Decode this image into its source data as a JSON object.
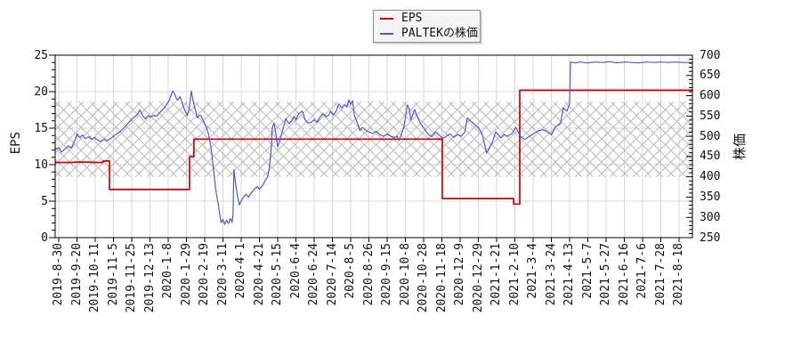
{
  "legend": {
    "items": [
      {
        "label": "EPS",
        "color": "#d40000"
      },
      {
        "label": "PALTEKの株価",
        "color": "#5055d2"
      }
    ]
  },
  "chart_data": {
    "type": "line",
    "title": "",
    "x_axis": {
      "tick_labels": [
        "2019-8-30",
        "2019-9-20",
        "2019-10-11",
        "2019-11-5",
        "2019-11-25",
        "2019-12-13",
        "2020-1-8",
        "2020-1-29",
        "2020-2-19",
        "2020-3-11",
        "2020-4-1",
        "2020-4-21",
        "2020-5-15",
        "2020-6-4",
        "2020-6-24",
        "2020-7-14",
        "2020-8-5",
        "2020-8-26",
        "2020-9-15",
        "2020-10-8",
        "2020-10-28",
        "2020-11-18",
        "2020-12-9",
        "2020-12-29",
        "2021-1-21",
        "2021-2-10",
        "2021-3-4",
        "2021-3-24",
        "2021-4-13",
        "2021-5-7",
        "2021-5-27",
        "2021-6-16",
        "2021-7-6",
        "2021-7-28",
        "2021-8-18"
      ]
    },
    "left_axis": {
      "label": "EPS",
      "min": 0,
      "max": 25,
      "ticks": [
        0,
        5,
        10,
        15,
        20,
        25
      ],
      "minor_step": 1
    },
    "right_axis": {
      "label": "株価",
      "min": 250,
      "max": 700,
      "ticks": [
        250,
        300,
        350,
        400,
        450,
        500,
        550,
        600,
        650,
        700
      ],
      "minor_step": 10
    },
    "band": {
      "style": "crosshatch",
      "color": "#b9b9b9",
      "right_axis_range": [
        400,
        585
      ]
    },
    "grid": {
      "color": "#d8d8d8",
      "vertical": "every-x-tick",
      "horizontal": "interior-left-ticks"
    },
    "series": [
      {
        "name": "EPS",
        "axis": "left",
        "color": "#d40000",
        "width": 1.7,
        "style": "step",
        "points": [
          [
            -0.2,
            10.3
          ],
          [
            0.8,
            10.3
          ],
          [
            0.9,
            10.35
          ],
          [
            1.7,
            10.35
          ],
          [
            1.8,
            10.3
          ],
          [
            2.4,
            10.3
          ],
          [
            2.45,
            10.5
          ],
          [
            2.78,
            10.5
          ],
          [
            2.78,
            6.6
          ],
          [
            7.17,
            6.6
          ],
          [
            7.17,
            11.1
          ],
          [
            7.41,
            11.1
          ],
          [
            7.41,
            13.5
          ],
          [
            21.02,
            13.5
          ],
          [
            21.02,
            5.35
          ],
          [
            24.93,
            5.35
          ],
          [
            24.93,
            4.6
          ],
          [
            25.27,
            4.6
          ],
          [
            25.27,
            20.2
          ],
          [
            34.73,
            20.2
          ]
        ]
      },
      {
        "name": "PALTEKの株価",
        "axis": "right",
        "color": "#5055d2",
        "width": 1.2,
        "style": "line",
        "points": [
          [
            -0.2,
            468
          ],
          [
            0,
            472
          ],
          [
            0.15,
            461
          ],
          [
            0.35,
            469
          ],
          [
            0.55,
            476
          ],
          [
            0.7,
            471
          ],
          [
            0.9,
            492
          ],
          [
            1.0,
            506
          ],
          [
            1.15,
            497
          ],
          [
            1.3,
            503
          ],
          [
            1.45,
            494
          ],
          [
            1.65,
            499
          ],
          [
            1.8,
            492
          ],
          [
            1.95,
            497
          ],
          [
            2.15,
            490
          ],
          [
            2.3,
            487
          ],
          [
            2.5,
            493
          ],
          [
            2.65,
            489
          ],
          [
            2.85,
            495
          ],
          [
            3.0,
            500
          ],
          [
            3.15,
            505
          ],
          [
            3.3,
            509
          ],
          [
            3.5,
            517
          ],
          [
            3.7,
            527
          ],
          [
            3.9,
            537
          ],
          [
            4.1,
            546
          ],
          [
            4.3,
            553
          ],
          [
            4.45,
            565
          ],
          [
            4.6,
            551
          ],
          [
            4.75,
            543
          ],
          [
            4.9,
            551
          ],
          [
            5.05,
            547
          ],
          [
            5.2,
            552
          ],
          [
            5.35,
            549
          ],
          [
            5.55,
            559
          ],
          [
            5.75,
            568
          ],
          [
            5.9,
            577
          ],
          [
            6.05,
            588
          ],
          [
            6.15,
            600
          ],
          [
            6.25,
            612
          ],
          [
            6.35,
            604
          ],
          [
            6.5,
            589
          ],
          [
            6.65,
            598
          ],
          [
            6.8,
            577
          ],
          [
            6.95,
            560
          ],
          [
            7.05,
            551
          ],
          [
            7.15,
            568
          ],
          [
            7.27,
            612
          ],
          [
            7.35,
            590
          ],
          [
            7.45,
            572
          ],
          [
            7.6,
            545
          ],
          [
            7.7,
            552
          ],
          [
            7.8,
            551
          ],
          [
            7.95,
            535
          ],
          [
            8.1,
            522
          ],
          [
            8.2,
            507
          ],
          [
            8.35,
            470
          ],
          [
            8.5,
            412
          ],
          [
            8.6,
            370
          ],
          [
            8.75,
            330
          ],
          [
            8.85,
            300
          ],
          [
            8.9,
            287
          ],
          [
            9.0,
            295
          ],
          [
            9.1,
            283
          ],
          [
            9.2,
            293
          ],
          [
            9.3,
            285
          ],
          [
            9.4,
            297
          ],
          [
            9.5,
            288
          ],
          [
            9.55,
            305
          ],
          [
            9.6,
            418
          ],
          [
            9.7,
            380
          ],
          [
            9.8,
            352
          ],
          [
            9.9,
            331
          ],
          [
            10.05,
            345
          ],
          [
            10.25,
            357
          ],
          [
            10.4,
            350
          ],
          [
            10.6,
            363
          ],
          [
            10.75,
            371
          ],
          [
            10.9,
            376
          ],
          [
            11.0,
            369
          ],
          [
            11.2,
            380
          ],
          [
            11.3,
            390
          ],
          [
            11.45,
            400
          ],
          [
            11.55,
            425
          ],
          [
            11.65,
            470
          ],
          [
            11.7,
            520
          ],
          [
            11.8,
            533
          ],
          [
            11.9,
            505
          ],
          [
            12.0,
            474
          ],
          [
            12.15,
            495
          ],
          [
            12.3,
            519
          ],
          [
            12.45,
            544
          ],
          [
            12.6,
            531
          ],
          [
            12.75,
            537
          ],
          [
            12.9,
            549
          ],
          [
            13.0,
            540
          ],
          [
            13.15,
            556
          ],
          [
            13.35,
            562
          ],
          [
            13.5,
            541
          ],
          [
            13.65,
            533
          ],
          [
            13.85,
            535
          ],
          [
            14.0,
            541
          ],
          [
            14.15,
            534
          ],
          [
            14.35,
            549
          ],
          [
            14.5,
            556
          ],
          [
            14.65,
            548
          ],
          [
            14.8,
            552
          ],
          [
            14.9,
            561
          ],
          [
            15.05,
            552
          ],
          [
            15.2,
            562
          ],
          [
            15.35,
            580
          ],
          [
            15.5,
            570
          ],
          [
            15.65,
            578
          ],
          [
            15.8,
            572
          ],
          [
            15.9,
            590
          ],
          [
            16.0,
            578
          ],
          [
            16.1,
            588
          ],
          [
            16.2,
            552
          ],
          [
            16.3,
            540
          ],
          [
            16.4,
            529
          ],
          [
            16.5,
            514
          ],
          [
            16.65,
            522
          ],
          [
            16.85,
            514
          ],
          [
            17.05,
            510
          ],
          [
            17.2,
            507
          ],
          [
            17.4,
            512
          ],
          [
            17.6,
            504
          ],
          [
            17.8,
            500
          ],
          [
            18.0,
            505
          ],
          [
            18.2,
            500
          ],
          [
            18.4,
            497
          ],
          [
            18.55,
            500
          ],
          [
            18.65,
            489
          ],
          [
            18.8,
            507
          ],
          [
            18.9,
            520
          ],
          [
            19.0,
            545
          ],
          [
            19.1,
            577
          ],
          [
            19.2,
            569
          ],
          [
            19.3,
            540
          ],
          [
            19.5,
            566
          ],
          [
            19.65,
            548
          ],
          [
            19.85,
            530
          ],
          [
            20.05,
            518
          ],
          [
            20.25,
            505
          ],
          [
            20.45,
            499
          ],
          [
            20.65,
            511
          ],
          [
            20.85,
            503
          ],
          [
            21.05,
            495
          ],
          [
            21.25,
            500
          ],
          [
            21.45,
            506
          ],
          [
            21.65,
            497
          ],
          [
            21.85,
            504
          ],
          [
            22.05,
            500
          ],
          [
            22.25,
            510
          ],
          [
            22.4,
            545
          ],
          [
            22.6,
            537
          ],
          [
            22.8,
            529
          ],
          [
            23.0,
            521
          ],
          [
            23.2,
            507
          ],
          [
            23.45,
            459
          ],
          [
            23.6,
            470
          ],
          [
            23.8,
            489
          ],
          [
            23.95,
            511
          ],
          [
            24.1,
            503
          ],
          [
            24.25,
            496
          ],
          [
            24.4,
            504
          ],
          [
            24.6,
            500
          ],
          [
            24.85,
            507
          ],
          [
            25.05,
            522
          ],
          [
            25.3,
            500
          ],
          [
            25.55,
            492
          ],
          [
            25.8,
            500
          ],
          [
            26.05,
            507
          ],
          [
            26.3,
            514
          ],
          [
            26.55,
            516
          ],
          [
            26.8,
            511
          ],
          [
            27.0,
            504
          ],
          [
            27.25,
            524
          ],
          [
            27.5,
            531
          ],
          [
            27.65,
            570
          ],
          [
            27.85,
            562
          ],
          [
            28.0,
            580
          ],
          [
            28.05,
            683
          ],
          [
            28.3,
            681
          ],
          [
            28.6,
            683
          ],
          [
            29.0,
            681
          ],
          [
            29.4,
            683
          ],
          [
            29.8,
            682
          ],
          [
            30.2,
            684
          ],
          [
            30.6,
            681
          ],
          [
            31.0,
            683
          ],
          [
            31.4,
            682
          ],
          [
            31.8,
            681
          ],
          [
            32.2,
            683
          ],
          [
            32.6,
            682
          ],
          [
            33.0,
            683
          ],
          [
            33.4,
            682
          ],
          [
            33.8,
            683
          ],
          [
            34.2,
            682
          ],
          [
            34.73,
            682
          ]
        ]
      }
    ]
  }
}
